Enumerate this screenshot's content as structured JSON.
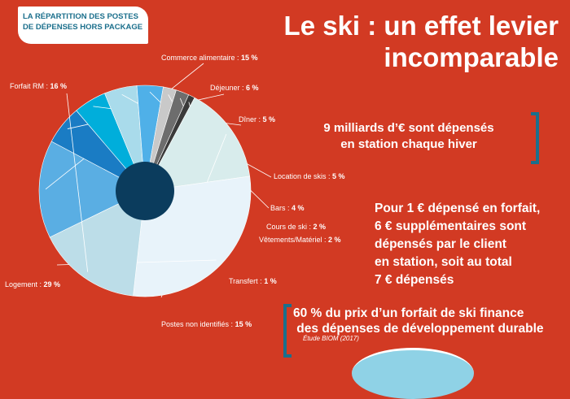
{
  "header": {
    "badge_line1": "La répartition des postes",
    "badge_line2": "de dépenses hors package",
    "title_line1": "Le ski : un effet levier",
    "title_line2": "incomparable"
  },
  "facts": {
    "fact1_line1": "9 milliards d’€ sont dépensés",
    "fact1_line2": "en station chaque hiver",
    "fact2_lines": [
      "Pour 1 € dépensé en forfait,",
      "6 € supplémentaires sont",
      "dépensés par le client",
      "en station, soit au total",
      "7 € dépensés"
    ],
    "fact3_lines": [
      "60 % du prix d’un forfait de ski finance",
      " des dépenses de développement durable"
    ],
    "source": "Étude BIOM (2017)"
  },
  "colors": {
    "background": "#d23a23",
    "accent": "#1b6f8c",
    "center": "#0b3c5d"
  },
  "chart_data": {
    "type": "pie",
    "title": "La répartition des postes de dépenses hors package",
    "unit": "%",
    "slices": [
      {
        "label": "Commerce alimentaire",
        "value": 15,
        "display": "15 %",
        "color": "#5aaee3"
      },
      {
        "label": "Déjeuner",
        "value": 6,
        "display": "6 %",
        "color": "#1a7cc4"
      },
      {
        "label": "Dîner",
        "value": 5,
        "display": "5 %",
        "color": "#00aedb"
      },
      {
        "label": "Location de skis",
        "value": 5,
        "display": "5 %",
        "color": "#a9dbeb"
      },
      {
        "label": "Bars",
        "value": 4,
        "display": "4 %",
        "color": "#4fb0e8"
      },
      {
        "label": "Cours de ski",
        "value": 2,
        "display": "2 %",
        "color": "#c9c9c9"
      },
      {
        "label": "Vêtements/Matériel",
        "value": 2,
        "display": "2 %",
        "color": "#6d6d6d"
      },
      {
        "label": "Transfert",
        "value": 1,
        "display": "1 %",
        "color": "#3a3a3a"
      },
      {
        "label": "Postes non identifiés",
        "value": 15,
        "display": "15 %",
        "color": "#d8ecec"
      },
      {
        "label": "Logement",
        "value": 29,
        "display": "29 %",
        "color": "#e8f3fa"
      },
      {
        "label": "Forfait RM",
        "value": 16,
        "display": "16 %",
        "color": "#bcdde8"
      }
    ]
  }
}
